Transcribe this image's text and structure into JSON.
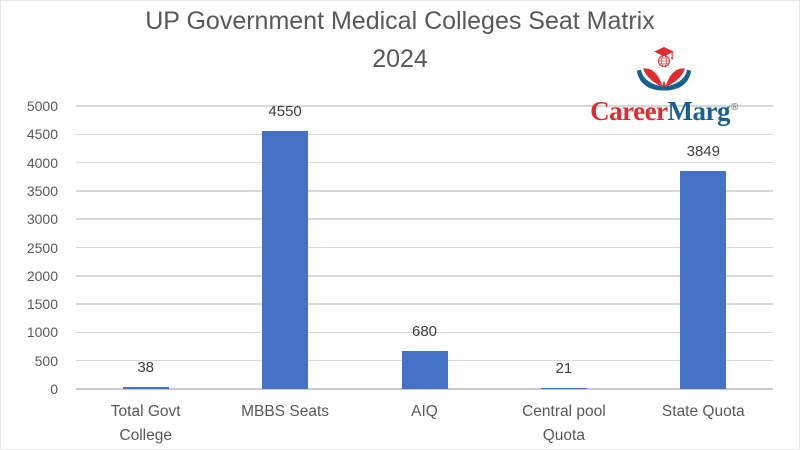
{
  "title": {
    "line1": "UP Government Medical Colleges Seat Matrix",
    "line2": "2024"
  },
  "logo": {
    "text_primary": "Career",
    "text_secondary": "Marg",
    "registered_mark": "®",
    "icon": "open-book-graduation-icon",
    "color_primary": "#e02b33",
    "color_secondary": "#17618f"
  },
  "chart_data": {
    "type": "bar",
    "title": "UP Government Medical Colleges Seat Matrix 2024",
    "categories": [
      "Total Govt College",
      "MBBS Seats",
      "AIQ",
      "Central pool Quota",
      "State Quota"
    ],
    "values": [
      38,
      4550,
      680,
      21,
      3849
    ],
    "data_labels": [
      "38",
      "4550",
      "680",
      "21",
      "3849"
    ],
    "xlabel": "",
    "ylabel": "",
    "ylim": [
      0,
      5000
    ],
    "ytick_step": 500,
    "ytick_labels": [
      "0",
      "500",
      "1000",
      "1500",
      "2000",
      "2500",
      "3000",
      "3500",
      "4000",
      "4500",
      "5000"
    ],
    "grid": true,
    "legend": false,
    "legend_position": "none",
    "bar_color": "#4472c4",
    "gridline_color": "#d9d9d9",
    "axis_label_color": "#595959",
    "data_label_color": "#404040"
  }
}
